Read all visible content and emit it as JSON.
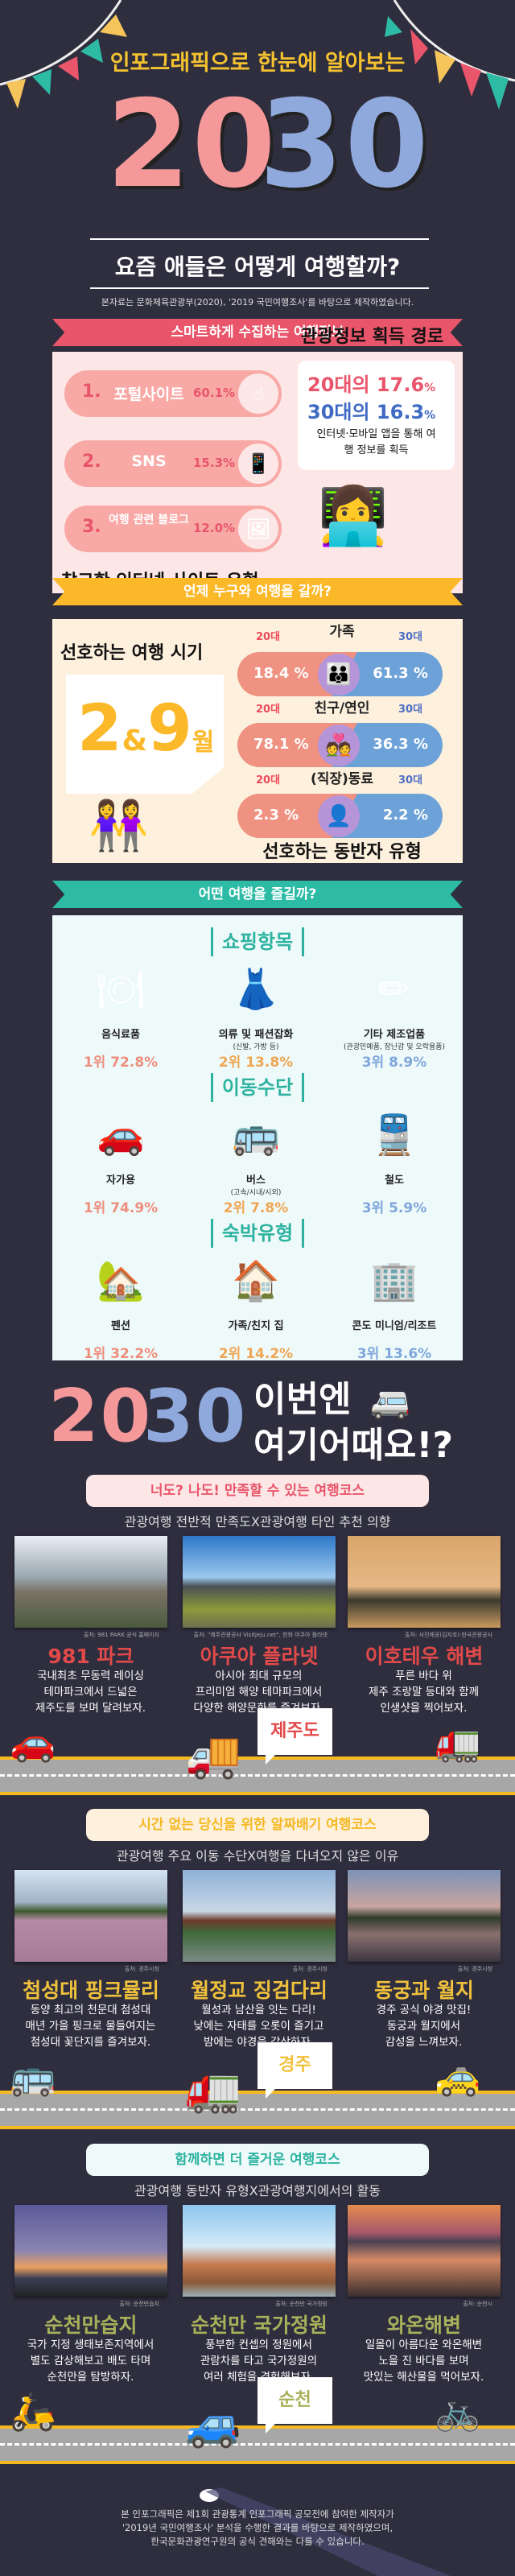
{
  "header": {
    "kicker": "인포그래픽으로 한눈에 알아보는",
    "big_20": "20",
    "big_30": "30",
    "title": "요즘 애들은 어떻게 여행할까?",
    "source": "본자료는 문화체육관광부(2020), '2019 국민여행조사'를 바탕으로 제작하였습니다."
  },
  "colors": {
    "bg": "#2f2e3f",
    "pink": "#f4989a",
    "blue": "#8fa9dc",
    "yellow": "#f5c230",
    "red": "#e9556a",
    "teal": "#2dbba5",
    "olive": "#a8b15a"
  },
  "section1": {
    "ribbon": "스마트하게 수집하는 여행정보",
    "sites": [
      {
        "rank": "1.",
        "label": "포털사이트",
        "pct": "60.1%",
        "icon": "hand-chat-icon"
      },
      {
        "rank": "2.",
        "label": "SNS",
        "pct": "15.3%",
        "icon": "phone-chat-icon"
      },
      {
        "rank": "3.",
        "label": "여행 관련 블로그",
        "pct": "12.0%",
        "icon": "phone-photo-icon"
      }
    ],
    "sites_heading": "참고한 인터넷 사이트 유형",
    "route_heading": "관광정보 획득 경로",
    "stat20_prefix": "20대의",
    "stat20_value": "17.6",
    "stat30_prefix": "30대의",
    "stat30_value": "16.3",
    "percent": "%",
    "stat_desc": "인터넷·모바일 앱을 통해 여행 정보를 획득"
  },
  "section2": {
    "ribbon": "언제 누구와 여행을 갈까?",
    "period_heading": "선호하는 여행 시기",
    "m1": "2",
    "amp": "&",
    "m2": "9",
    "month_unit": "월",
    "age20": "20대",
    "age30": "30대",
    "companions": [
      {
        "label": "가족",
        "v20": "18.4 %",
        "v30": "61.3 %",
        "icon": "family-icon"
      },
      {
        "label": "친구/연인",
        "v20": "78.1 %",
        "v30": "36.3 %",
        "icon": "couple-icon"
      },
      {
        "label": "(직장)동료",
        "v20": "2.3 %",
        "v30": "2.2 %",
        "icon": "coworker-icon"
      }
    ],
    "companion_heading": "선호하는 동반자 유형"
  },
  "section3": {
    "ribbon": "어떤 여행을 즐길까?",
    "groups": [
      {
        "heading": "쇼핑항목",
        "items": [
          {
            "label": "음식료품",
            "sub": "",
            "pct": "1위 72.8%",
            "icon": "plate-cutlery-icon",
            "glyph": "🍽"
          },
          {
            "label": "의류 및 패션잡화",
            "sub": "(신발, 가방 등)",
            "pct": "2위 13.8%",
            "icon": "dress-gift-icon",
            "glyph": "👗"
          },
          {
            "label": "기타 제조업품",
            "sub": "(관광민예품, 장난감 및 오락용품)",
            "pct": "3위 8.9%",
            "icon": "pencil-cup-icon",
            "glyph": "✏"
          }
        ]
      },
      {
        "heading": "이동수단",
        "items": [
          {
            "label": "자가용",
            "sub": "",
            "pct": "1위 74.9%",
            "icon": "car-icon",
            "glyph": "🚗"
          },
          {
            "label": "버스",
            "sub": "(고속/시내/시외)",
            "pct": "2위 7.8%",
            "icon": "bus-icon",
            "glyph": "🚌"
          },
          {
            "label": "철도",
            "sub": "",
            "pct": "3위 5.9%",
            "icon": "train-icon",
            "glyph": "🚆"
          }
        ]
      },
      {
        "heading": "숙박유형",
        "items": [
          {
            "label": "펜션",
            "sub": "",
            "pct": "1위 32.2%",
            "icon": "pension-house-icon",
            "glyph": "🏡"
          },
          {
            "label": "가족/친지 집",
            "sub": "",
            "pct": "2위 14.2%",
            "icon": "house-icon",
            "glyph": "🏠"
          },
          {
            "label": "콘도 미니엄/리조트",
            "sub": "",
            "pct": "3위 13.6%",
            "icon": "resort-building-icon",
            "glyph": "🏢"
          }
        ]
      }
    ],
    "rank_colors": [
      "#ef8e7d",
      "#f0a653",
      "#7fa6dc"
    ]
  },
  "section4": {
    "big_20": "20",
    "big_30": "30",
    "line1": "이번엔",
    "line2": "여기어때요!?",
    "courses": [
      {
        "pill": "너도? 나도! 만족할 수 있는 여행코스",
        "sub": "관광여행 전반적 만족도X관광여행 타인 추천 의향",
        "region": "제주도",
        "places": [
          {
            "title": "981 파크",
            "caption": "출처: 981 PARK 공식 홈페이지",
            "desc": "국내최초 무동력 레이싱\n테마파크에서 드넓은\n제주도를 보며 달려보자."
          },
          {
            "title": "아쿠아 플라넷",
            "caption": "출처: \"제주관광공사 Visitjeju.net\", 한화 아쿠아 플라넷",
            "desc": "아시아 최대 규모의\n프리미엄 해양 테마파크에서\n다양한 해양문화를 즐겨보자."
          },
          {
            "title": "이호테우 해변",
            "caption": "출처: 사진제공(김지호)·한국관광공사",
            "desc": "푸른 바다 위\n제주 조랑말 등대와 함께\n인생샷을 찍어보자."
          }
        ]
      },
      {
        "pill": "시간 없는 당신을 위한 알짜배기 여행코스",
        "sub": "관광여행 주요 이동 수단X여행을 다녀오지 않은 이유",
        "region": "경주",
        "places": [
          {
            "title": "첨성대 핑크뮬리",
            "caption": "출처: 경주시청",
            "desc": "동양 최고의 천문대 첨성대\n매년 가을 핑크로 물들여지는\n첨성대 꽃단지를 즐겨보자."
          },
          {
            "title": "월정교 징검다리",
            "caption": "출처: 경주시청",
            "desc": "월성과 남산을 잇는 다리!\n낮에는 자태를 오롯이 즐기고\n밤에는 야경을 감상하자."
          },
          {
            "title": "동궁과 월지",
            "caption": "출처: 경주시청",
            "desc": "경주 공식 야경 맛집!\n동궁과 월지에서\n감성을 느껴보자."
          }
        ]
      },
      {
        "pill": "함께하면 더 즐거운 여행코스",
        "sub": "관광여행 동반자 유형X관광여행지에서의 활동",
        "region": "순천",
        "places": [
          {
            "title": "순천만습지",
            "caption": "출처: 순천만습지",
            "desc": "국가 지정 생태보존지역에서\n별도 감상해보고 배도 타며\n순천만을 탐방하자."
          },
          {
            "title": "순천만 국가정원",
            "caption": "출처: 순천만 국가정원",
            "desc": "풍부한 컨셉의 정원에서\n관람차를 타고 국가정원의\n여러 체험을 경험해보자."
          },
          {
            "title": "와온해변",
            "caption": "출처: 순천시",
            "desc": "일몰이 아름다운 와온해변\n노을 진 바다를 보며\n맛있는 해산물을 먹어보자."
          }
        ]
      }
    ]
  },
  "footer": {
    "note": "본 인포그래픽은 제1회 관광통계 인포그래픽 공모전에 참여한 제작자가\n'2019년 국민여행조사' 분석을 수행한 결과를 바탕으로 제작하였으며,\n한국문화관광연구원의 공식 견해와는 다를 수 있습니다."
  }
}
